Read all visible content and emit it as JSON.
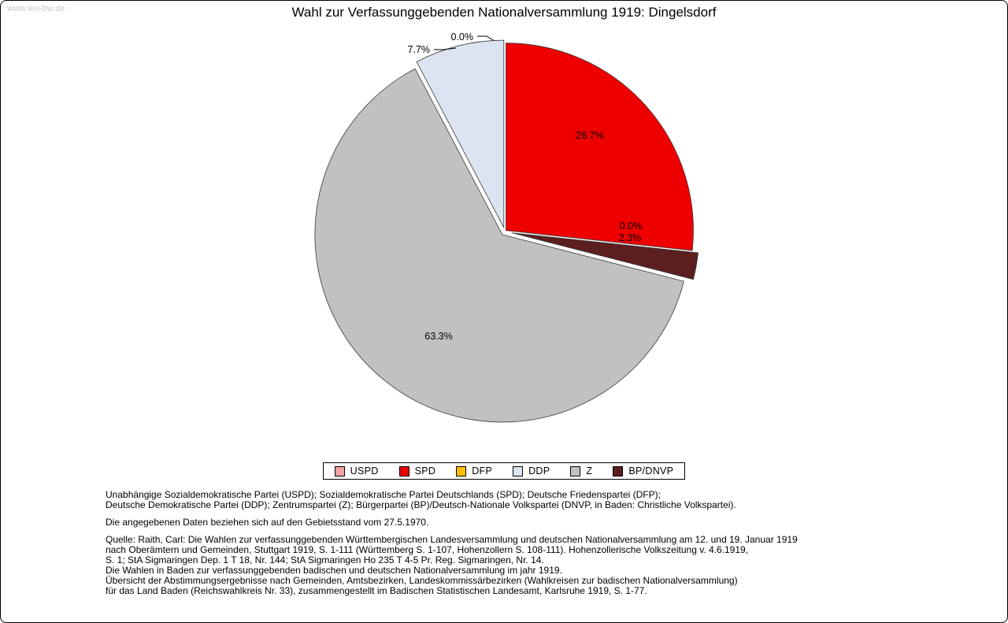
{
  "watermark": "www.leo-bw.de",
  "title": "Wahl zur Verfassunggebenden Nationalversammlung 1919: Dingelsdorf",
  "chart_data": {
    "type": "pie",
    "title": "Wahl zur Verfassunggebenden Nationalversammlung 1919: Dingelsdorf",
    "unit": "%",
    "legend_position": "bottom",
    "slices": [
      {
        "label": "USPD",
        "value": 0.0,
        "color": "#f2a3a3",
        "explode": 0
      },
      {
        "label": "SPD",
        "value": 26.7,
        "color": "#ee0000",
        "explode": 2
      },
      {
        "label": "DFP",
        "value": 0.0,
        "color": "#ffc000",
        "explode": 0
      },
      {
        "label": "BP/DNVP",
        "value": 2.3,
        "color": "#5c1f1f",
        "explode": 9
      },
      {
        "label": "Z",
        "value": 63.3,
        "color": "#c1c1c1",
        "explode": 5
      },
      {
        "label": "DDP",
        "value": 7.7,
        "color": "#dbe4f0",
        "explode": 5
      }
    ],
    "legend": [
      {
        "label": "USPD",
        "color": "#f2a3a3"
      },
      {
        "label": "SPD",
        "color": "#ee0000"
      },
      {
        "label": "DFP",
        "color": "#ffc000"
      },
      {
        "label": "DDP",
        "color": "#dbe4f0"
      },
      {
        "label": "Z",
        "color": "#c1c1c1"
      },
      {
        "label": "BP/DNVP",
        "color": "#5c1f1f"
      }
    ]
  },
  "footer": {
    "paragraphs": [
      [
        "Unabhängige Sozialdemokratische Partei (USPD); Sozialdemokratische Partei Deutschlands (SPD); Deutsche Friedenspartei (DFP);",
        "Deutsche Demokratische Partei (DDP); Zentrumspartei (Z); Bürgerpartei (BP)/Deutsch-Nationale Volkspartei (DNVP, in Baden: Christliche Volkspartei)."
      ],
      [
        "Die angegebenen Daten beziehen sich auf den Gebietsstand vom 27.5.1970."
      ],
      [
        "Quelle: Raith, Carl: Die Wahlen zur verfassunggebenden Württembergischen Landesversammlung und deutschen Nationalversammlung am 12. und 19. Januar 1919",
        "nach Oberämtern und Gemeinden, Stuttgart 1919, S. 1-111 (Württemberg S. 1-107, Hohenzollern S. 108-111). Hohenzollerische Volkszeitung v. 4.6.1919,",
        "S. 1; StA Sigmaringen Dep. 1 T 18, Nr. 144; StA Sigmaringen Ho 235 T 4-5 Pr. Reg. Sigmaringen, Nr. 14.",
        "Die Wahlen in Baden zur verfassunggebenden badischen und deutschen Nationalversammlung im jahr 1919.",
        "Übersicht der Abstimmungsergebnisse nach Gemeinden, Amtsbezirken, Landeskommissärbezirken (Wahlkreisen zur badischen Nationalversammlung)",
        "für das Land Baden (Reichswahlkreis Nr. 33), zusammengestellt im Badischen Statistischen Landesamt, Karlsruhe 1919, S. 1-77."
      ]
    ]
  }
}
